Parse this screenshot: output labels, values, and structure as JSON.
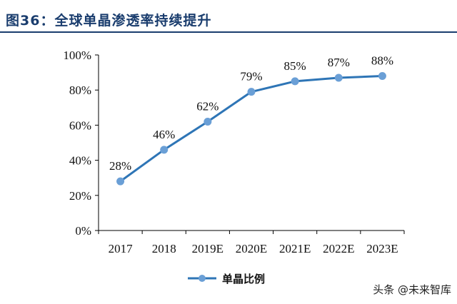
{
  "header": {
    "title": "图36：全球单晶渗透率持续提升"
  },
  "watermark": {
    "text": "头条 @未来智库"
  },
  "colors": {
    "title": "#1a3d6e",
    "line": "#2e75b6",
    "marker": "#6a9fd6",
    "axis": "#000000"
  },
  "chart_data": {
    "type": "line",
    "categories": [
      "2017",
      "2018",
      "2019E",
      "2020E",
      "2021E",
      "2022E",
      "2023E"
    ],
    "series": [
      {
        "name": "单晶比例",
        "values": [
          28,
          46,
          62,
          79,
          85,
          87,
          88
        ],
        "data_labels": [
          "28%",
          "46%",
          "62%",
          "79%",
          "85%",
          "87%",
          "88%"
        ]
      }
    ],
    "y_ticks": [
      "0%",
      "20%",
      "40%",
      "60%",
      "80%",
      "100%"
    ],
    "y_tick_values": [
      0,
      20,
      40,
      60,
      80,
      100
    ],
    "ylim": [
      0,
      100
    ],
    "title": "",
    "xlabel": "",
    "ylabel": "",
    "grid": false,
    "legend_position": "bottom-center"
  }
}
